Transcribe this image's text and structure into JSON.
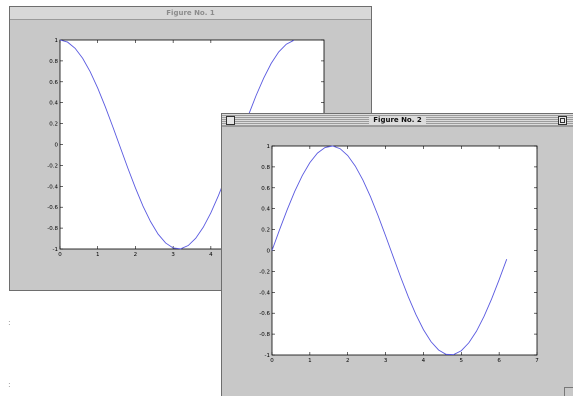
{
  "windows": [
    {
      "title": "Figure No. 1"
    },
    {
      "title": "Figure No. 2"
    }
  ],
  "edge_marks": [
    ":",
    ":"
  ],
  "chart_data": [
    {
      "type": "line",
      "title": "",
      "xlabel": "",
      "ylabel": "",
      "xlim": [
        0,
        7
      ],
      "ylim": [
        -1,
        1
      ],
      "grid": false,
      "visible_x_ticks": [
        "0",
        "1",
        "2",
        "3",
        "4"
      ],
      "y_ticks": [
        "-1",
        "-0.8",
        "-0.6",
        "-0.4",
        "-0.2",
        "0",
        "0.2",
        "0.4",
        "0.6",
        "0.8",
        "1"
      ],
      "line_color": "#5a5ae0",
      "series": [
        {
          "x": [
            0,
            0.2,
            0.4,
            0.6,
            0.8,
            1.0,
            1.2,
            1.4,
            1.6,
            1.8,
            2.0,
            2.2,
            2.4,
            2.6,
            2.8,
            3.0,
            3.2,
            3.4,
            3.6,
            3.8,
            4.0,
            4.2,
            4.4,
            4.6,
            4.8,
            5.0,
            5.2,
            5.4,
            5.6,
            5.8,
            6.0,
            6.2
          ],
          "y": [
            1,
            0.98,
            0.921,
            0.825,
            0.697,
            0.54,
            0.362,
            0.17,
            -0.029,
            -0.227,
            -0.416,
            -0.589,
            -0.737,
            -0.857,
            -0.942,
            -0.99,
            -0.998,
            -0.967,
            -0.897,
            -0.791,
            -0.654,
            -0.49,
            -0.307,
            -0.112,
            0.087,
            0.284,
            0.469,
            0.635,
            0.776,
            0.886,
            0.96,
            0.997
          ]
        }
      ]
    },
    {
      "type": "line",
      "title": "",
      "xlabel": "",
      "ylabel": "",
      "xlim": [
        0,
        7
      ],
      "ylim": [
        -1,
        1
      ],
      "grid": false,
      "x_ticks": [
        "0",
        "1",
        "2",
        "3",
        "4",
        "5",
        "6",
        "7"
      ],
      "y_ticks": [
        "-1",
        "-0.8",
        "-0.6",
        "-0.4",
        "-0.2",
        "0",
        "0.2",
        "0.4",
        "0.6",
        "0.8",
        "1"
      ],
      "line_color": "#5a5ae0",
      "series": [
        {
          "x": [
            0,
            0.2,
            0.4,
            0.6,
            0.8,
            1.0,
            1.2,
            1.4,
            1.6,
            1.8,
            2.0,
            2.2,
            2.4,
            2.6,
            2.8,
            3.0,
            3.2,
            3.4,
            3.6,
            3.8,
            4.0,
            4.2,
            4.4,
            4.6,
            4.8,
            5.0,
            5.2,
            5.4,
            5.6,
            5.8,
            6.0,
            6.2
          ],
          "y": [
            0,
            0.199,
            0.389,
            0.565,
            0.717,
            0.841,
            0.932,
            0.985,
            1.0,
            0.974,
            0.909,
            0.808,
            0.675,
            0.516,
            0.335,
            0.141,
            -0.058,
            -0.256,
            -0.443,
            -0.612,
            -0.757,
            -0.872,
            -0.952,
            -0.994,
            -0.996,
            -0.959,
            -0.883,
            -0.773,
            -0.631,
            -0.465,
            -0.279,
            -0.083
          ]
        }
      ]
    }
  ]
}
